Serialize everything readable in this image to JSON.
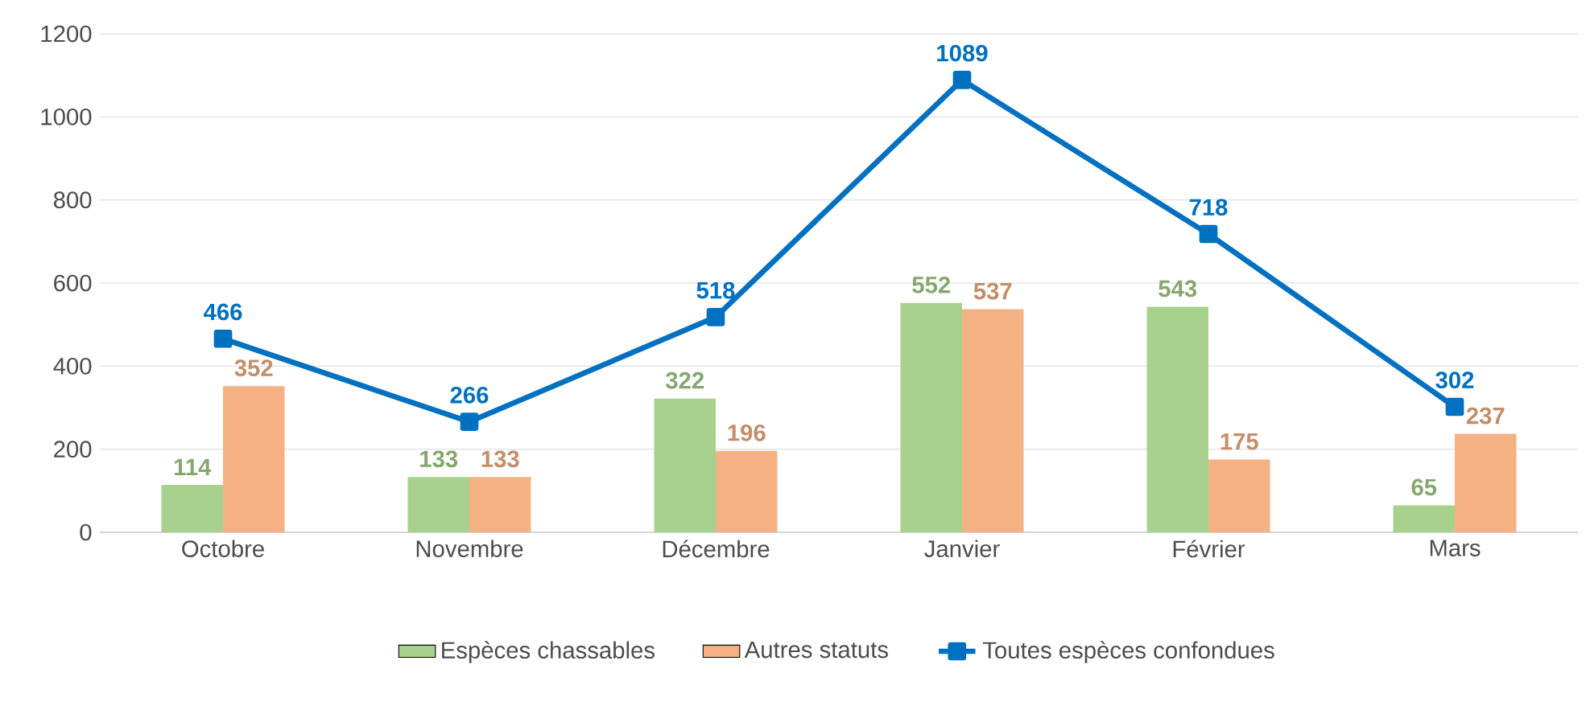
{
  "chart_data": {
    "type": "bar",
    "categories": [
      "Octobre",
      "Novembre",
      "Décembre",
      "Janvier",
      "Février",
      "Mars"
    ],
    "series": [
      {
        "name": "Espèces chassables",
        "color": "#a9d18e",
        "values": [
          114,
          133,
          322,
          552,
          543,
          65
        ]
      },
      {
        "name": "Autres statuts",
        "color": "#f4b183",
        "values": [
          352,
          133,
          196,
          537,
          175,
          237
        ]
      },
      {
        "name": "Toutes espèces confondues",
        "type": "line",
        "color": "#0070c0",
        "values": [
          466,
          266,
          518,
          1089,
          718,
          302
        ]
      }
    ],
    "ylim": [
      0,
      1200
    ],
    "yticks": [
      0,
      200,
      400,
      600,
      800,
      1000,
      1200
    ],
    "grid": "y",
    "legend": "bottom",
    "marker": "square",
    "line_style": "solid",
    "data_labels": true
  }
}
